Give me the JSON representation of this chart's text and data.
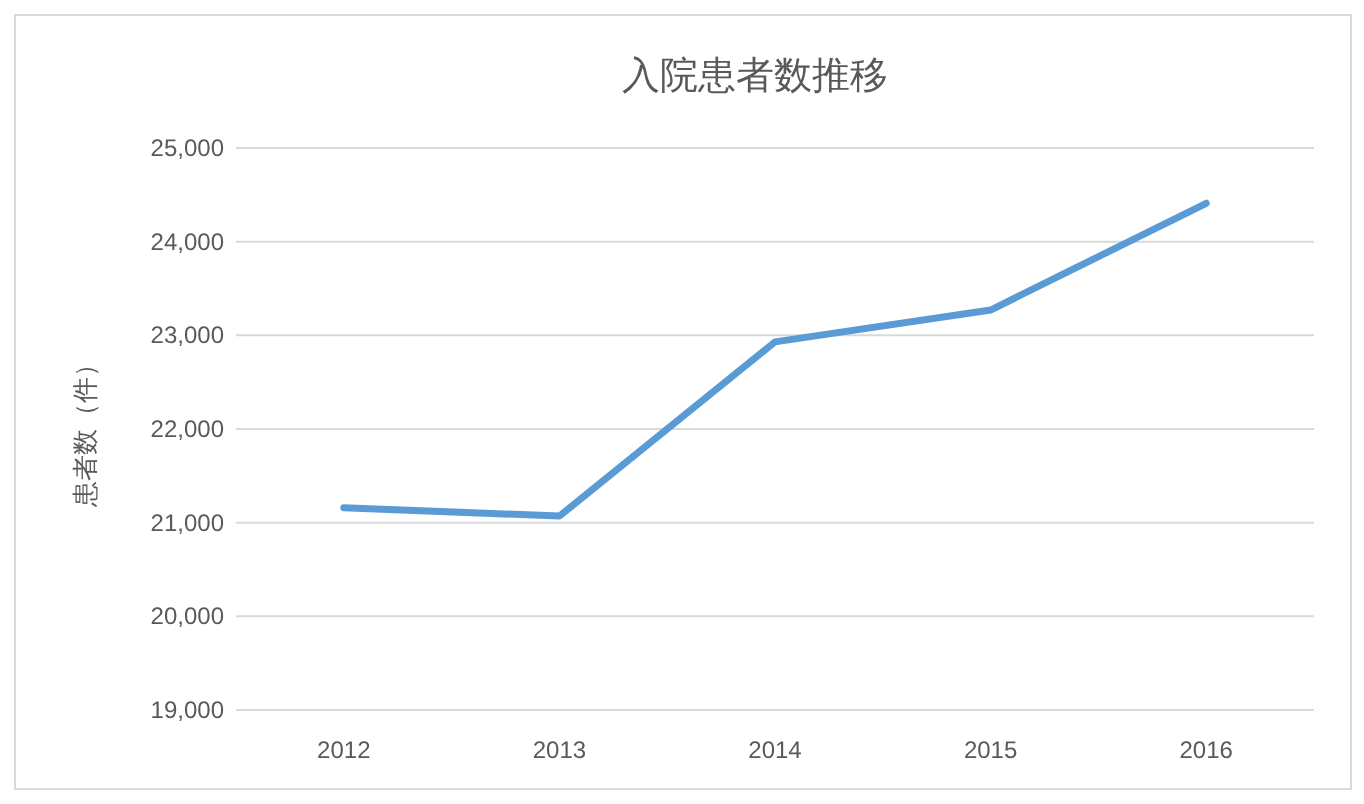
{
  "chart_data": {
    "type": "line",
    "title": "入院患者数推移",
    "ylabel": "患者数（件）",
    "categories": [
      "2012",
      "2013",
      "2014",
      "2015",
      "2016"
    ],
    "series": [
      {
        "color": "#5b9bd5",
        "values": [
          21160,
          21070,
          22930,
          23270,
          24410
        ]
      }
    ],
    "ylim": [
      19000,
      25000
    ],
    "yticks": [
      {
        "value": 19000,
        "label": "19,000"
      },
      {
        "value": 20000,
        "label": "20,000"
      },
      {
        "value": 21000,
        "label": "21,000"
      },
      {
        "value": 22000,
        "label": "22,000"
      },
      {
        "value": 23000,
        "label": "23,000"
      },
      {
        "value": 24000,
        "label": "24,000"
      },
      {
        "value": 25000,
        "label": "25,000"
      }
    ],
    "grid": "y",
    "marker": "none",
    "line_style": "solid"
  }
}
